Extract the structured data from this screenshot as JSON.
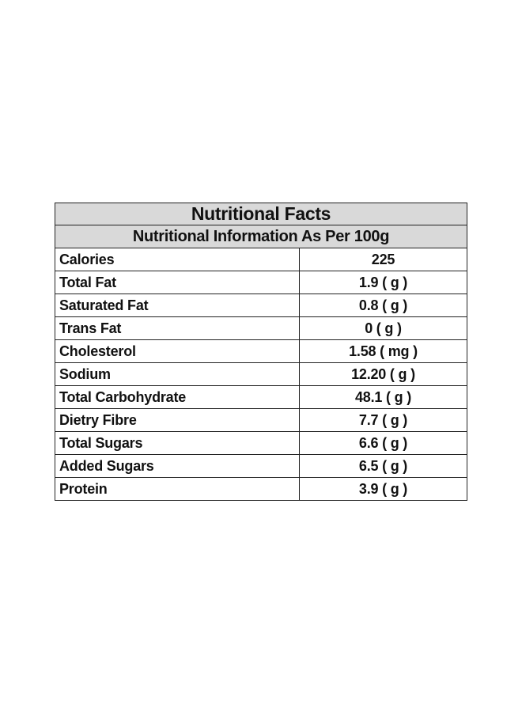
{
  "table": {
    "title": "Nutritional Facts",
    "subtitle": "Nutritional Information As Per 100g",
    "rows": [
      {
        "name": "Calories",
        "value": "225"
      },
      {
        "name": "Total Fat",
        "value": "1.9 ( g )"
      },
      {
        "name": "Saturated Fat",
        "value": "0.8 ( g )"
      },
      {
        "name": "Trans Fat",
        "value": "0 ( g )"
      },
      {
        "name": "Cholesterol",
        "value": "1.58 ( mg )"
      },
      {
        "name": "Sodium",
        "value": "12.20 ( g )"
      },
      {
        "name": "Total Carbohydrate",
        "value": "48.1 ( g )"
      },
      {
        "name": "Dietry Fibre",
        "value": "7.7 ( g )"
      },
      {
        "name": "Total Sugars",
        "value": "6.6 ( g )"
      },
      {
        "name": "Added Sugars",
        "value": "6.5 ( g )"
      },
      {
        "name": "Protein",
        "value": "3.9 ( g )"
      }
    ]
  }
}
